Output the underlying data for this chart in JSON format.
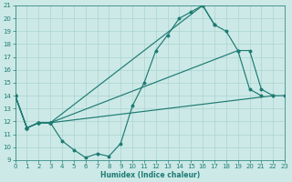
{
  "xlabel": "Humidex (Indice chaleur)",
  "xlim": [
    0,
    23
  ],
  "ylim": [
    9,
    21
  ],
  "xticks": [
    0,
    1,
    2,
    3,
    4,
    5,
    6,
    7,
    8,
    9,
    10,
    11,
    12,
    13,
    14,
    15,
    16,
    17,
    18,
    19,
    20,
    21,
    22,
    23
  ],
  "yticks": [
    9,
    10,
    11,
    12,
    13,
    14,
    15,
    16,
    17,
    18,
    19,
    20,
    21
  ],
  "background_color": "#cce9e7",
  "grid_color": "#aad4d1",
  "line_color": "#1e7b72",
  "lines": [
    {
      "x": [
        0,
        1,
        2,
        3,
        4,
        5,
        6,
        7,
        8,
        9,
        10,
        11,
        12,
        13,
        14,
        15,
        16,
        17
      ],
      "y": [
        14,
        11.5,
        11.9,
        11.9,
        10.5,
        9.8,
        9.2,
        9.5,
        9.3,
        10.3,
        13.2,
        15.0,
        17.5,
        18.7,
        20.0,
        20.5,
        21.0,
        19.5
      ]
    },
    {
      "x": [
        0,
        1,
        2,
        3,
        16,
        17,
        18,
        19,
        20,
        21
      ],
      "y": [
        14,
        11.5,
        11.9,
        11.9,
        21.0,
        19.5,
        19.0,
        17.5,
        14.5,
        14.0
      ]
    },
    {
      "x": [
        0,
        1,
        2,
        3,
        19,
        20,
        21,
        22
      ],
      "y": [
        14,
        11.5,
        11.9,
        11.9,
        17.5,
        17.5,
        14.5,
        14.0
      ]
    },
    {
      "x": [
        0,
        1,
        2,
        3,
        22,
        23
      ],
      "y": [
        14,
        11.5,
        11.9,
        11.9,
        14.0,
        14.0
      ]
    }
  ]
}
